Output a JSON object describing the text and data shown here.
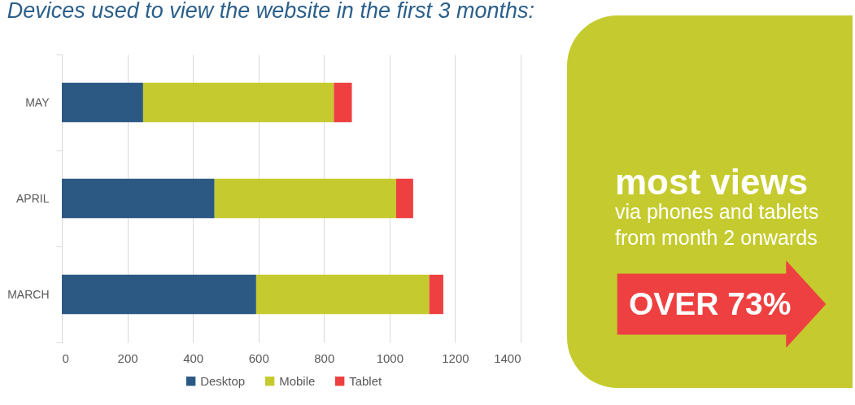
{
  "chart_data": [
    {
      "type": "bar",
      "title": "Devices used to view the website in the first 3 months:",
      "orientation": "horizontal",
      "stacked": true,
      "categories": [
        "MAY",
        "APRIL",
        "MARCH"
      ],
      "series": [
        {
          "name": "Desktop",
          "color": "#2b5984",
          "values": [
            248,
            466,
            593
          ]
        },
        {
          "name": "Mobile",
          "color": "#c5cb2e",
          "values": [
            582,
            554,
            528
          ]
        },
        {
          "name": "Tablet",
          "color": "#ee4040",
          "values": [
            55,
            52,
            43
          ]
        }
      ],
      "xlim": [
        0,
        1400
      ],
      "xticks": [
        0,
        200,
        400,
        600,
        800,
        1000,
        1200,
        1400
      ],
      "grid": "x",
      "legend": "bottom"
    },
    {
      "type": "other",
      "title": "most views",
      "annotations": [
        "via phones and tablets",
        "from month 2 onwards",
        "OVER 73%"
      ]
    }
  ]
}
